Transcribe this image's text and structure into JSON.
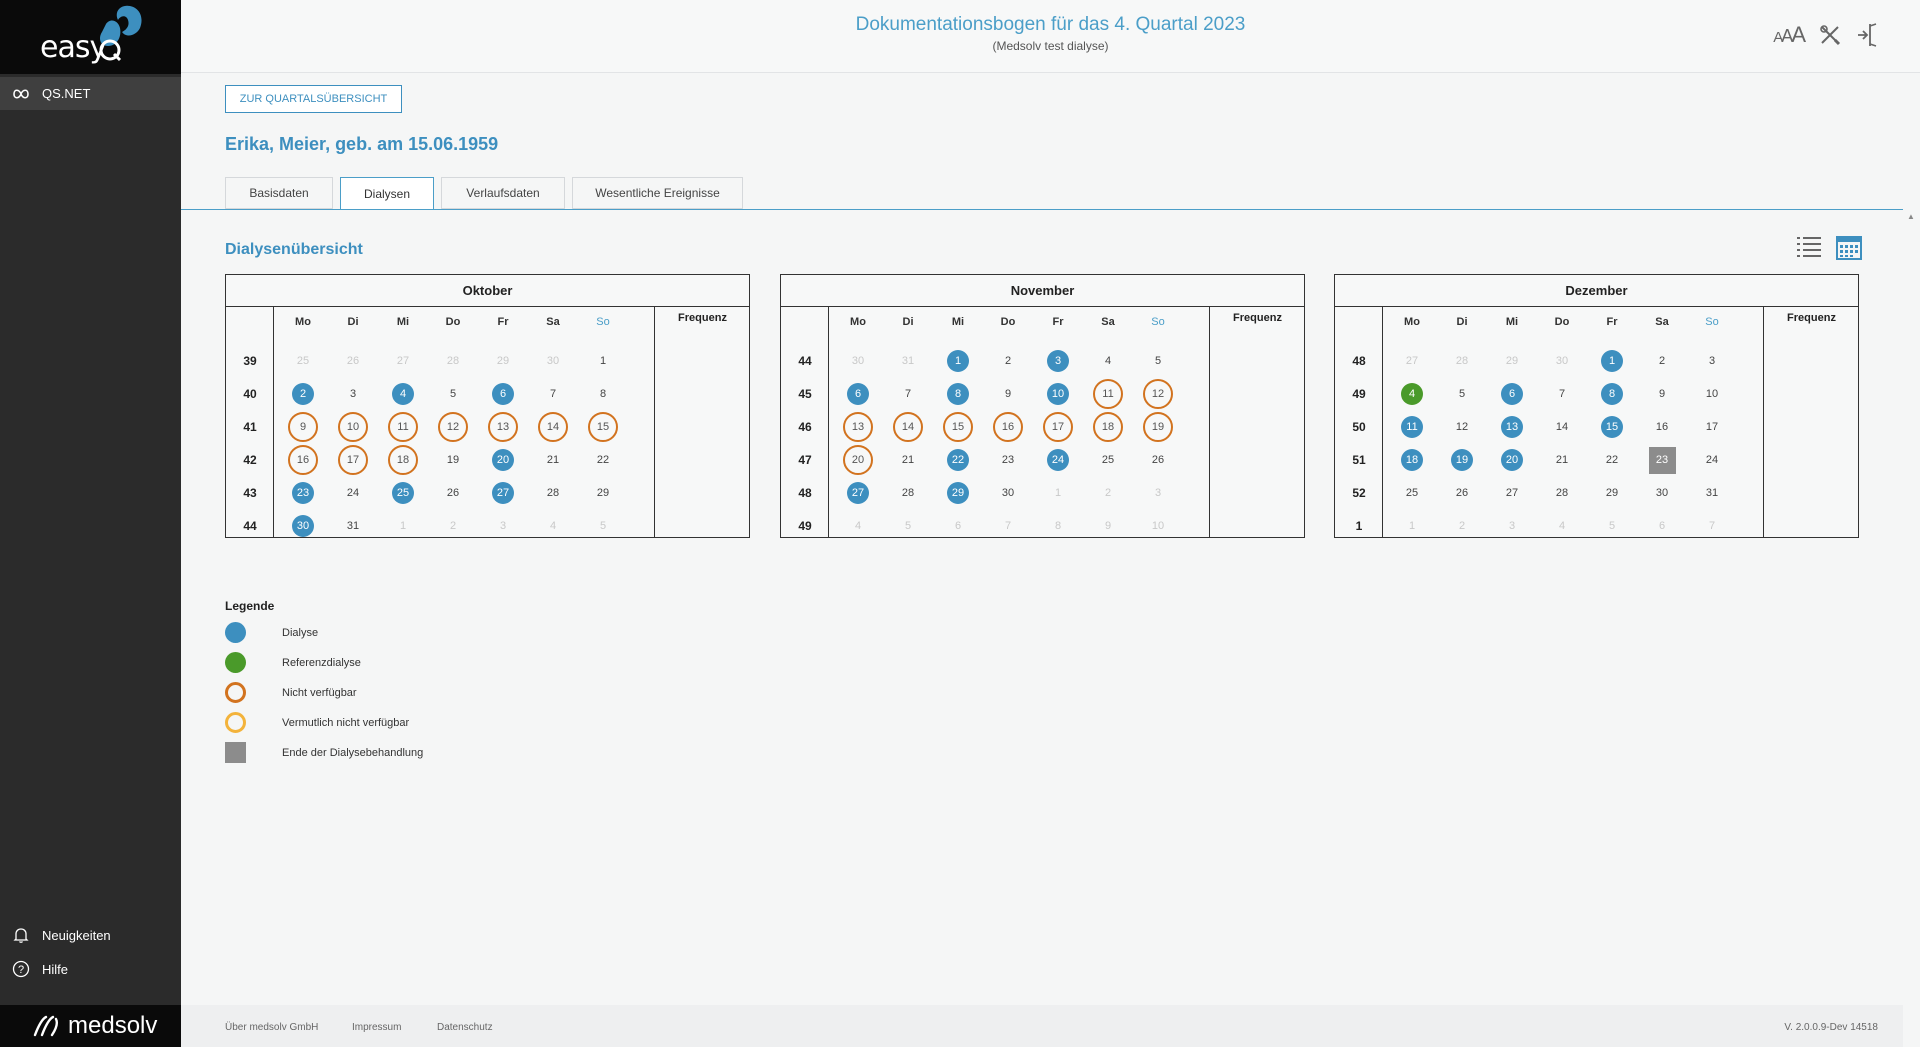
{
  "app": {
    "logo_text": "easy",
    "logo_q": "Q",
    "nav_item": "QS.NET",
    "news_label": "Neuigkeiten",
    "help_label": "Hilfe",
    "brand": "medsolv"
  },
  "header": {
    "title": "Dokumentationsbogen für das 4. Quartal 2023",
    "subtitle": "(Medsolv test dialyse)"
  },
  "back_button": "ZUR QUARTALSÜBERSICHT",
  "patient": "Erika, Meier, geb. am 15.06.1959",
  "tabs": [
    "Basisdaten",
    "Dialysen",
    "Verlaufsdaten",
    "Wesentliche Ereignisse"
  ],
  "active_tab": "Dialysen",
  "section_title": "Dialysenübersicht",
  "day_headers": [
    "Mo",
    "Di",
    "Mi",
    "Do",
    "Fr",
    "Sa",
    "So"
  ],
  "frequency_label": "Frequenz",
  "colors": {
    "accent": "#3d8fbf",
    "dialyse": "#3d8fbf",
    "referenz": "#4a9a2a",
    "nicht_verfuegbar": "#d2731f",
    "vermutlich_nicht_verfuegbar": "#f3b33b",
    "ende": "#8c8c8c"
  },
  "months": [
    {
      "name": "Oktober",
      "weeks": [
        {
          "nr": "39",
          "days": [
            [
              "25",
              "out"
            ],
            [
              "26",
              "out"
            ],
            [
              "27",
              "out"
            ],
            [
              "28",
              "out"
            ],
            [
              "29",
              "out"
            ],
            [
              "30",
              "out"
            ],
            [
              "1",
              ""
            ]
          ]
        },
        {
          "nr": "40",
          "days": [
            [
              "2",
              "dia"
            ],
            [
              "3",
              ""
            ],
            [
              "4",
              "dia"
            ],
            [
              "5",
              ""
            ],
            [
              "6",
              "dia"
            ],
            [
              "7",
              ""
            ],
            [
              "8",
              ""
            ]
          ]
        },
        {
          "nr": "41",
          "days": [
            [
              "9",
              "nv"
            ],
            [
              "10",
              "nv"
            ],
            [
              "11",
              "nv"
            ],
            [
              "12",
              "nv"
            ],
            [
              "13",
              "nv"
            ],
            [
              "14",
              "nv"
            ],
            [
              "15",
              "nv"
            ]
          ]
        },
        {
          "nr": "42",
          "days": [
            [
              "16",
              "nv"
            ],
            [
              "17",
              "nv"
            ],
            [
              "18",
              "nv"
            ],
            [
              "19",
              ""
            ],
            [
              "20",
              "dia"
            ],
            [
              "21",
              ""
            ],
            [
              "22",
              ""
            ]
          ]
        },
        {
          "nr": "43",
          "days": [
            [
              "23",
              "dia"
            ],
            [
              "24",
              ""
            ],
            [
              "25",
              "dia"
            ],
            [
              "26",
              ""
            ],
            [
              "27",
              "dia"
            ],
            [
              "28",
              ""
            ],
            [
              "29",
              ""
            ]
          ]
        },
        {
          "nr": "44",
          "days": [
            [
              "30",
              "dia"
            ],
            [
              "31",
              ""
            ],
            [
              "1",
              "out"
            ],
            [
              "2",
              "out"
            ],
            [
              "3",
              "out"
            ],
            [
              "4",
              "out"
            ],
            [
              "5",
              "out"
            ]
          ]
        }
      ]
    },
    {
      "name": "November",
      "weeks": [
        {
          "nr": "44",
          "days": [
            [
              "30",
              "out"
            ],
            [
              "31",
              "out"
            ],
            [
              "1",
              "dia"
            ],
            [
              "2",
              ""
            ],
            [
              "3",
              "dia"
            ],
            [
              "4",
              ""
            ],
            [
              "5",
              ""
            ]
          ]
        },
        {
          "nr": "45",
          "days": [
            [
              "6",
              "dia"
            ],
            [
              "7",
              ""
            ],
            [
              "8",
              "dia"
            ],
            [
              "9",
              ""
            ],
            [
              "10",
              "dia"
            ],
            [
              "11",
              "nv"
            ],
            [
              "12",
              "nv"
            ]
          ]
        },
        {
          "nr": "46",
          "days": [
            [
              "13",
              "nv"
            ],
            [
              "14",
              "nv"
            ],
            [
              "15",
              "nv"
            ],
            [
              "16",
              "nv"
            ],
            [
              "17",
              "nv"
            ],
            [
              "18",
              "nv"
            ],
            [
              "19",
              "nv"
            ]
          ]
        },
        {
          "nr": "47",
          "days": [
            [
              "20",
              "nv"
            ],
            [
              "21",
              ""
            ],
            [
              "22",
              "dia"
            ],
            [
              "23",
              ""
            ],
            [
              "24",
              "dia"
            ],
            [
              "25",
              ""
            ],
            [
              "26",
              ""
            ]
          ]
        },
        {
          "nr": "48",
          "days": [
            [
              "27",
              "dia"
            ],
            [
              "28",
              ""
            ],
            [
              "29",
              "dia"
            ],
            [
              "30",
              ""
            ],
            [
              "1",
              "out"
            ],
            [
              "2",
              "out"
            ],
            [
              "3",
              "out"
            ]
          ]
        },
        {
          "nr": "49",
          "days": [
            [
              "4",
              "out"
            ],
            [
              "5",
              "out"
            ],
            [
              "6",
              "out"
            ],
            [
              "7",
              "out"
            ],
            [
              "8",
              "out"
            ],
            [
              "9",
              "out"
            ],
            [
              "10",
              "out"
            ]
          ]
        }
      ]
    },
    {
      "name": "Dezember",
      "weeks": [
        {
          "nr": "48",
          "days": [
            [
              "27",
              "out"
            ],
            [
              "28",
              "out"
            ],
            [
              "29",
              "out"
            ],
            [
              "30",
              "out"
            ],
            [
              "1",
              "dia"
            ],
            [
              "2",
              ""
            ],
            [
              "3",
              ""
            ]
          ]
        },
        {
          "nr": "49",
          "days": [
            [
              "4",
              "ref"
            ],
            [
              "5",
              ""
            ],
            [
              "6",
              "dia"
            ],
            [
              "7",
              ""
            ],
            [
              "8",
              "dia"
            ],
            [
              "9",
              ""
            ],
            [
              "10",
              ""
            ]
          ]
        },
        {
          "nr": "50",
          "days": [
            [
              "11",
              "dia"
            ],
            [
              "12",
              ""
            ],
            [
              "13",
              "dia"
            ],
            [
              "14",
              ""
            ],
            [
              "15",
              "dia"
            ],
            [
              "16",
              ""
            ],
            [
              "17",
              ""
            ]
          ]
        },
        {
          "nr": "51",
          "days": [
            [
              "18",
              "dia"
            ],
            [
              "19",
              "dia"
            ],
            [
              "20",
              "dia"
            ],
            [
              "21",
              ""
            ],
            [
              "22",
              ""
            ],
            [
              "23",
              "end"
            ],
            [
              "24",
              ""
            ]
          ]
        },
        {
          "nr": "52",
          "days": [
            [
              "25",
              ""
            ],
            [
              "26",
              ""
            ],
            [
              "27",
              ""
            ],
            [
              "28",
              ""
            ],
            [
              "29",
              ""
            ],
            [
              "30",
              ""
            ],
            [
              "31",
              ""
            ]
          ]
        },
        {
          "nr": "1",
          "days": [
            [
              "1",
              "out"
            ],
            [
              "2",
              "out"
            ],
            [
              "3",
              "out"
            ],
            [
              "4",
              "out"
            ],
            [
              "5",
              "out"
            ],
            [
              "6",
              "out"
            ],
            [
              "7",
              "out"
            ]
          ]
        }
      ]
    }
  ],
  "legend": {
    "title": "Legende",
    "items": [
      {
        "type": "dia",
        "label": "Dialyse"
      },
      {
        "type": "ref",
        "label": "Referenzdialyse"
      },
      {
        "type": "nv",
        "label": "Nicht verfügbar"
      },
      {
        "type": "vnv",
        "label": "Vermutlich nicht verfügbar"
      },
      {
        "type": "end",
        "label": "Ende der Dialysebehandlung"
      }
    ]
  },
  "footer": {
    "about": "Über medsolv GmbH",
    "imprint": "Impressum",
    "privacy": "Datenschutz",
    "version": "V. 2.0.0.9-Dev 14518"
  }
}
